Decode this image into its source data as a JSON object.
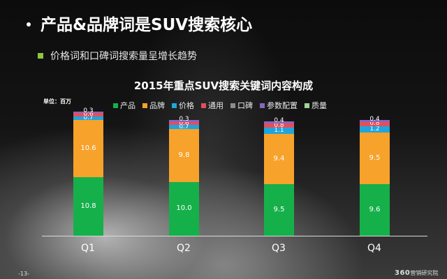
{
  "slide": {
    "title": "产品&品牌词是SUV搜索核心",
    "subtitle": "价格词和口碑词搜索量呈增长趋势",
    "page_number": "-13-",
    "brand_logo": "360",
    "brand_text": "营销研究院",
    "colors": {
      "bullet_square": "#8dc63f"
    }
  },
  "chart_data": {
    "type": "bar",
    "stacked": true,
    "title": "2015年重点SUV搜索关键词内容构成",
    "unit_label": "单位：百万",
    "xlabel": "",
    "ylabel": "",
    "categories": [
      "Q1",
      "Q2",
      "Q3",
      "Q4"
    ],
    "legend_position": "top",
    "grid": false,
    "series": [
      {
        "name": "产品",
        "color": "#16b04b",
        "values": [
          10.8,
          10.0,
          9.5,
          9.6
        ]
      },
      {
        "name": "品牌",
        "color": "#f7a22a",
        "values": [
          10.6,
          9.8,
          9.4,
          9.5
        ]
      },
      {
        "name": "价格",
        "color": "#1fa5dd",
        "values": [
          0.7,
          0.7,
          1.1,
          1.2
        ]
      },
      {
        "name": "通用",
        "color": "#e0505a",
        "values": [
          0.6,
          0.6,
          0.8,
          0.8
        ]
      },
      {
        "name": "口碑",
        "color": "#8c8c8c",
        "values": [
          0.0,
          0.0,
          0.0,
          0.0
        ]
      },
      {
        "name": "参数配置",
        "color": "#8a64c0",
        "values": [
          0.3,
          0.3,
          0.4,
          0.4
        ]
      },
      {
        "name": "质量",
        "color": "#9fd49a",
        "values": [
          0.0,
          0.0,
          0.0,
          0.0
        ]
      }
    ],
    "visible_labels": {
      "Q1": [
        "10.8",
        "10.6",
        "0.7",
        "0.6",
        "0.3"
      ],
      "Q2": [
        "10.0",
        "9.8",
        "0.7",
        "0.6",
        "0.3"
      ],
      "Q3": [
        "9.5",
        "9.4",
        "1.1",
        "0.8",
        "0.4"
      ],
      "Q4": [
        "9.6",
        "9.5",
        "1.2",
        "0.8",
        "0.4"
      ]
    }
  }
}
